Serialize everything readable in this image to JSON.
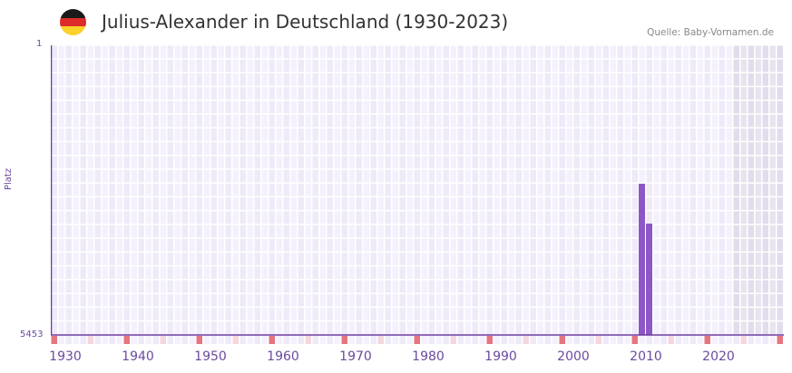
{
  "header": {
    "title": "Julius-Alexander in Deutschland (1930-2023)",
    "source": "Quelle: Baby-Vornamen.de",
    "flag_colors": [
      "#1a1a1a",
      "#dd2a2a",
      "#fcd12a"
    ]
  },
  "axes": {
    "y_title": "Platz",
    "y_top_label": "1",
    "y_bottom_label": "5453",
    "x_labels": [
      "1930",
      "1940",
      "1950",
      "1960",
      "1970",
      "1980",
      "1990",
      "2000",
      "2010",
      "2020"
    ]
  },
  "colors": {
    "bar": "#8e57c7",
    "axis": "#6b3aa0",
    "marker_strong": "#e57580",
    "marker_light": "#f5d7df"
  },
  "chart_data": {
    "type": "bar",
    "title": "Julius-Alexander in Deutschland (1930-2023)",
    "xlabel": "",
    "ylabel": "Platz",
    "y_inverted": true,
    "ylim": [
      1,
      5453
    ],
    "x_range": [
      1928,
      2028
    ],
    "data_range": [
      1930,
      2023
    ],
    "shaded_future_from": 2022,
    "categories": [
      "2009",
      "2010"
    ],
    "values": [
      2607,
      3357
    ],
    "series": [
      {
        "name": "Platz",
        "points": [
          {
            "x": 2009,
            "rank": 2607
          },
          {
            "x": 2010,
            "rank": 3357
          }
        ]
      }
    ],
    "x_tick_labels": [
      "1930",
      "1940",
      "1950",
      "1960",
      "1970",
      "1980",
      "1990",
      "2000",
      "2010",
      "2020"
    ],
    "grid": true,
    "legend": null
  }
}
